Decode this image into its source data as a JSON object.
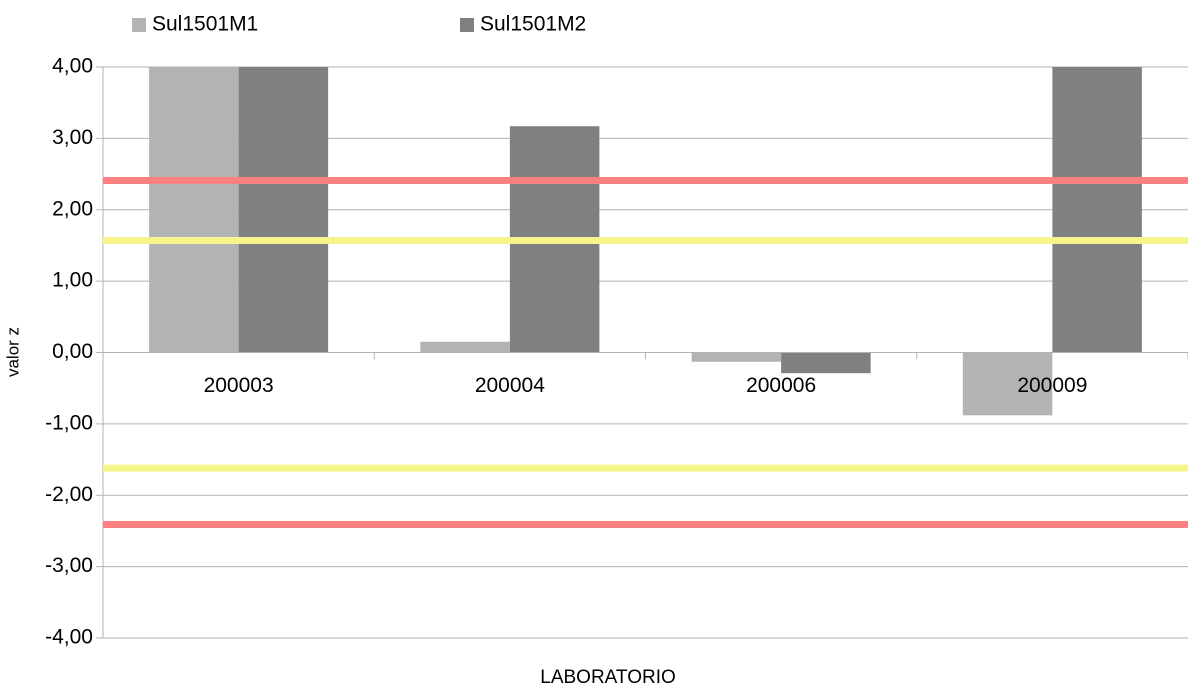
{
  "chart_data": {
    "type": "bar",
    "categories": [
      "200003",
      "200004",
      "200006",
      "200009"
    ],
    "series": [
      {
        "name": "Sul1501M1",
        "color": "#b3b3b3",
        "values": [
          4.0,
          0.15,
          -0.13,
          -0.88
        ]
      },
      {
        "name": "Sul1501M2",
        "color": "#808080",
        "values": [
          4.0,
          3.17,
          -0.29,
          4.0
        ]
      }
    ],
    "ylim": [
      -4,
      4
    ],
    "yticks": [
      {
        "value": 4,
        "label": "4,00"
      },
      {
        "value": 3,
        "label": "3,00"
      },
      {
        "value": 2,
        "label": "2,00"
      },
      {
        "value": 1,
        "label": "1,00"
      },
      {
        "value": 0,
        "label": "0,00"
      },
      {
        "value": -1,
        "label": "-1,00"
      },
      {
        "value": -2,
        "label": "-2,00"
      },
      {
        "value": -3,
        "label": "-3,00"
      },
      {
        "value": -4,
        "label": "-4,00"
      }
    ],
    "y_label": "valor z",
    "x_label": "LABORATORIO",
    "grid": true,
    "legend": "top",
    "reference_lines": [
      {
        "value": 2.41,
        "color": "#ff8080"
      },
      {
        "value": 1.57,
        "color": "#f5f58c"
      },
      {
        "value": -1.62,
        "color": "#f5f58c"
      },
      {
        "value": -2.41,
        "color": "#ff8080"
      }
    ]
  }
}
